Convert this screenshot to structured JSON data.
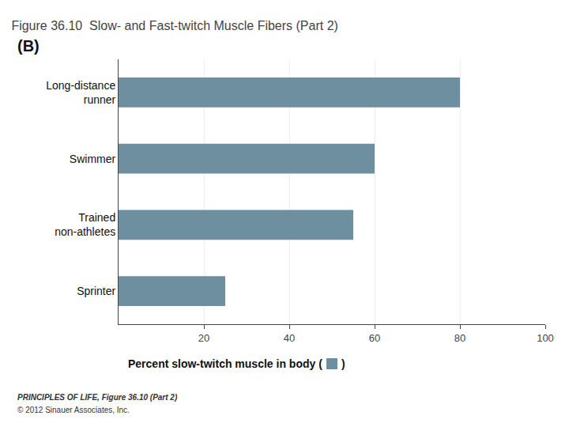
{
  "chart_data": {
    "type": "bar",
    "orientation": "horizontal",
    "title": "Figure 36.10  Slow- and Fast-twitch Muscle Fibers (Part 2)",
    "categories": [
      "Long-distance\nrunner",
      "Swimmer",
      "Trained\nnon-athletes",
      "Sprinter"
    ],
    "values": [
      80,
      60,
      55,
      25
    ],
    "color": "#6E8FA0",
    "xlim": [
      0,
      100
    ],
    "xticks": [
      20,
      40,
      60,
      80,
      100
    ],
    "grid": true,
    "xlabel": "Percent slow-twitch muscle in body (",
    "xlabel_suffix": ")",
    "annotations": [
      "(B)",
      "PRINCIPLES OF LIFE, Figure 36.10 (Part 2)",
      "© 2012 Sinauer Associates, Inc."
    ]
  }
}
